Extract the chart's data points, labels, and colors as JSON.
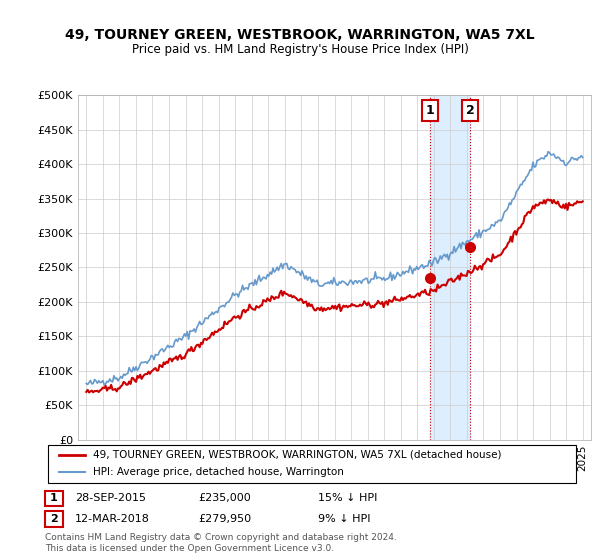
{
  "title": "49, TOURNEY GREEN, WESTBROOK, WARRINGTON, WA5 7XL",
  "subtitle": "Price paid vs. HM Land Registry's House Price Index (HPI)",
  "legend_line1": "49, TOURNEY GREEN, WESTBROOK, WARRINGTON, WA5 7XL (detached house)",
  "legend_line2": "HPI: Average price, detached house, Warrington",
  "annot1_label": "1",
  "annot1_date": "28-SEP-2015",
  "annot1_price": "£235,000",
  "annot1_hpi": "15% ↓ HPI",
  "annot2_label": "2",
  "annot2_date": "12-MAR-2018",
  "annot2_price": "£279,950",
  "annot2_hpi": "9% ↓ HPI",
  "footer": "Contains HM Land Registry data © Crown copyright and database right 2024.\nThis data is licensed under the Open Government Licence v3.0.",
  "line1_color": "#cc0000",
  "line2_color": "#6699cc",
  "shaded_color": "#ddeeff",
  "vline_color": "#cc0000",
  "t1_x": 2015.75,
  "t1_y": 235000,
  "t2_x": 2018.2,
  "t2_y": 279950,
  "ylim": [
    0,
    500000
  ],
  "yticks": [
    0,
    50000,
    100000,
    150000,
    200000,
    250000,
    300000,
    350000,
    400000,
    450000,
    500000
  ],
  "xlim": [
    1994.5,
    2025.5
  ],
  "xtick_start": 1995,
  "xtick_end": 2025
}
